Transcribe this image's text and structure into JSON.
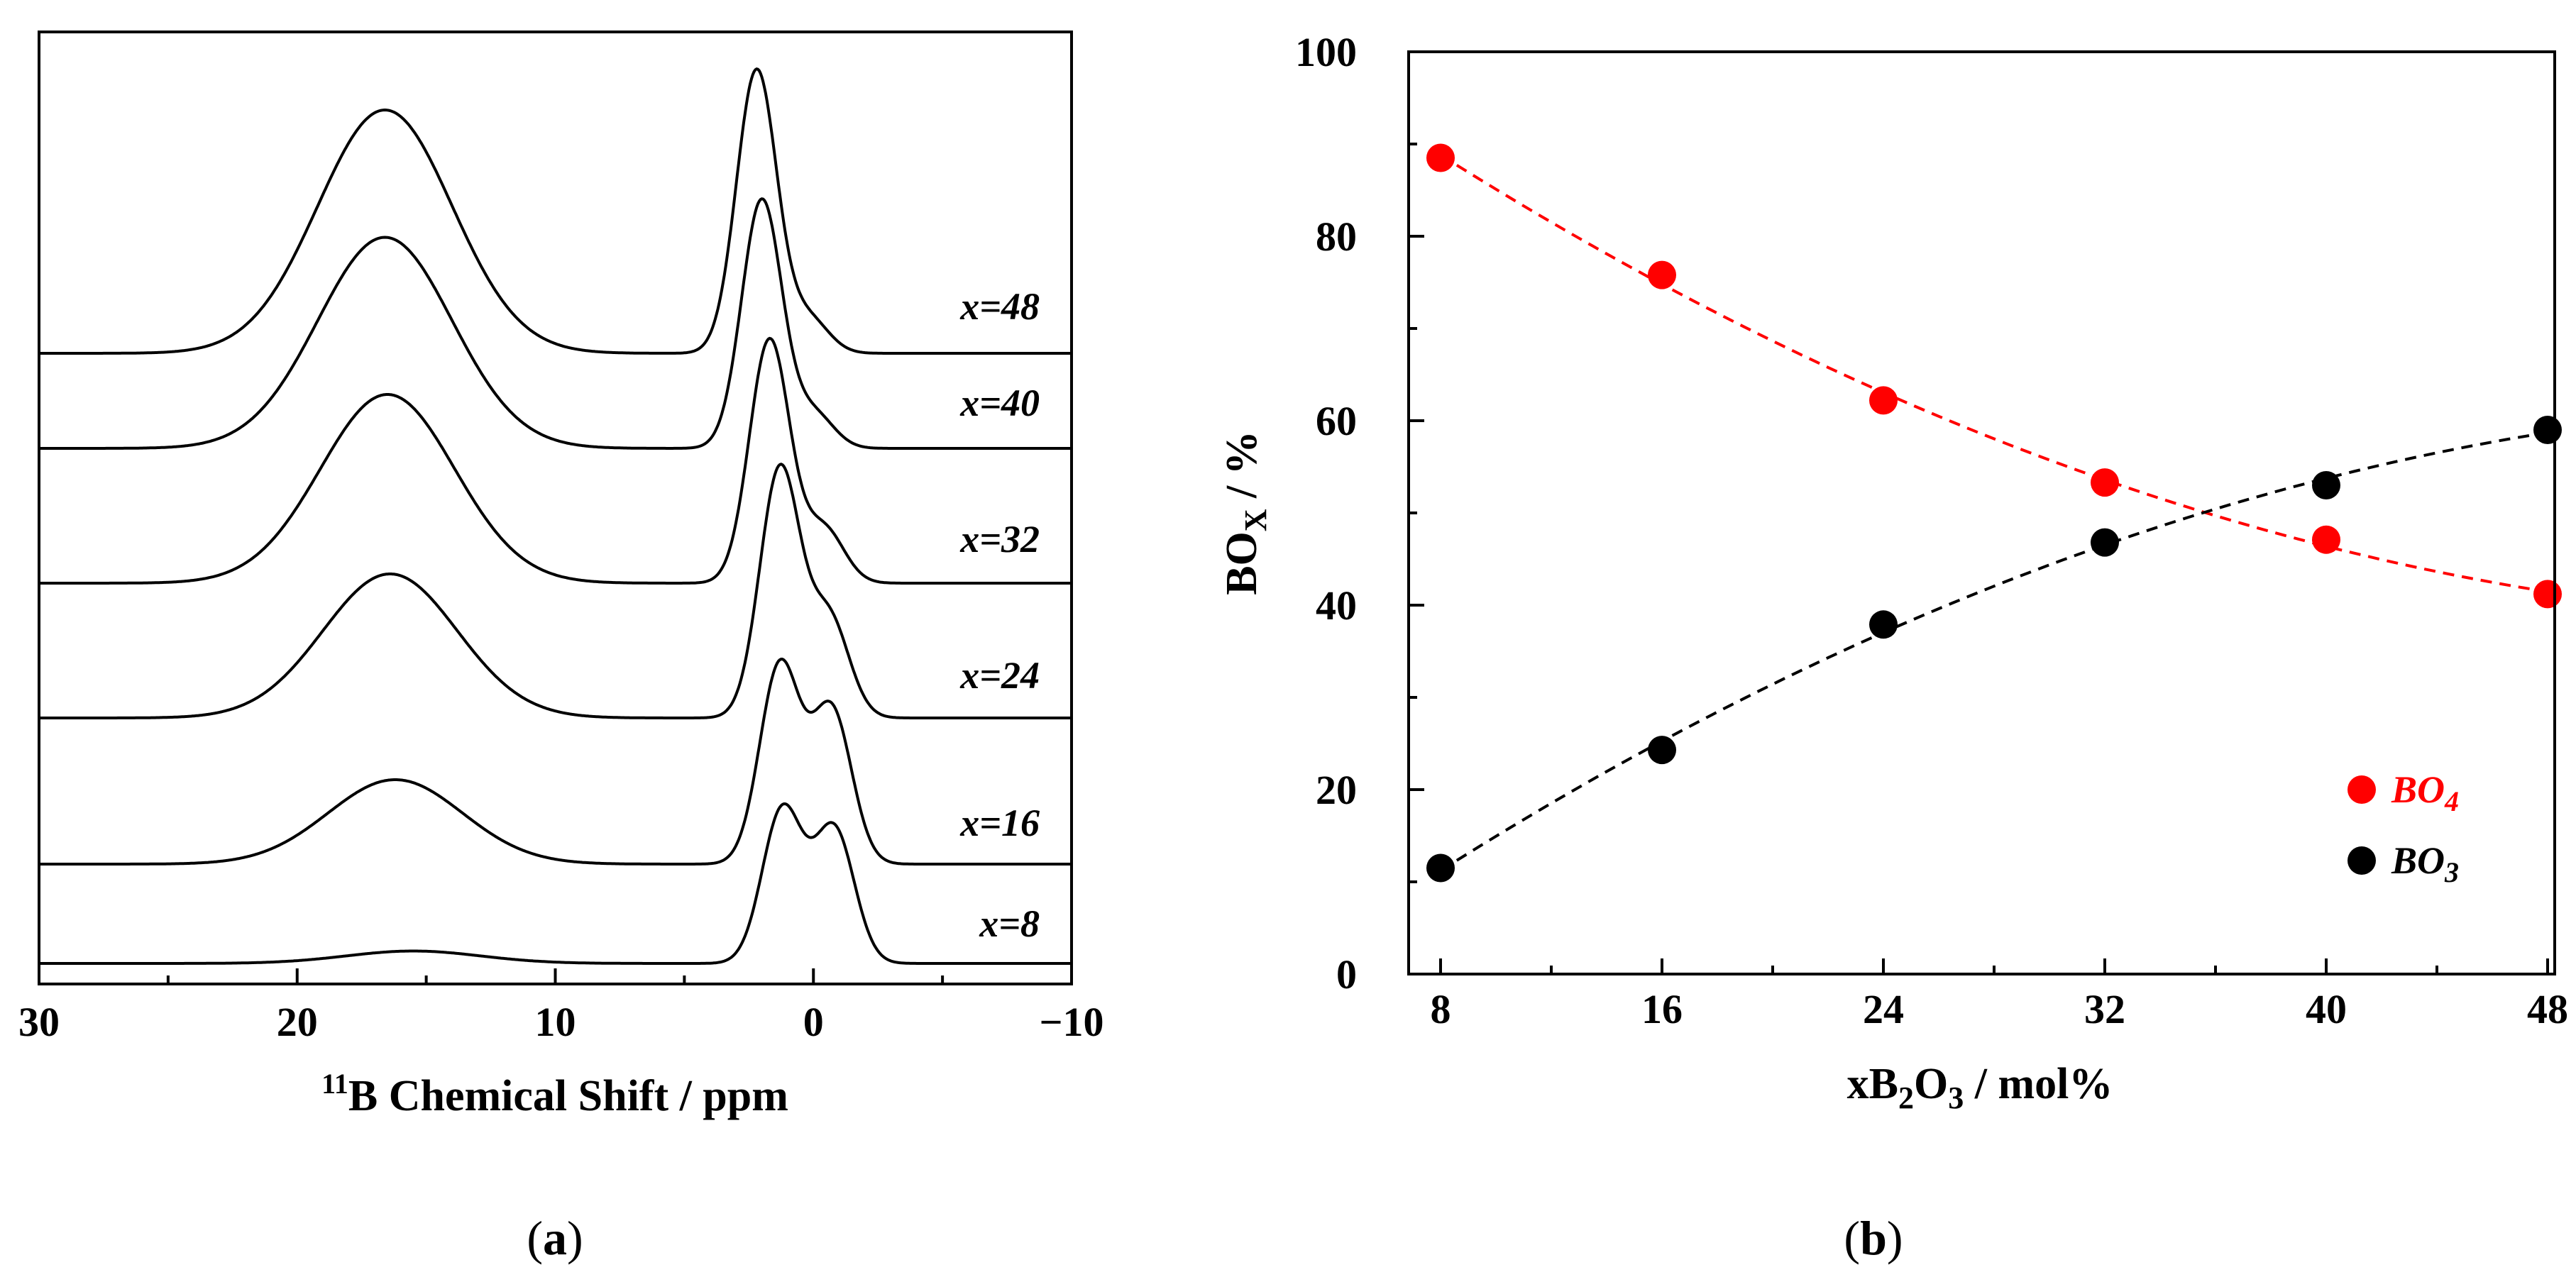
{
  "chart_data": [
    {
      "panel": "(a)",
      "panel_letter": "a",
      "type": "line",
      "title": "",
      "xlabel_sup": "11",
      "xlabel_main": "B Chemical Shift / ppm",
      "ylabel": "",
      "xlim": [
        30,
        -10
      ],
      "xticks": [
        30,
        20,
        10,
        0,
        -10
      ],
      "xtick_labels": [
        "30",
        "20",
        "10",
        "0",
        "−10"
      ],
      "minor_tick_step": 5,
      "series": [
        {
          "name": "x=8",
          "bo4_peak": {
            "center": 15.5,
            "rel_height": 0.05
          },
          "bo3_peaks": [
            {
              "center": 1.2,
              "rel_height": 0.62
            },
            {
              "center": -0.8,
              "rel_height": 0.54
            }
          ]
        },
        {
          "name": "x=16",
          "bo4_peak": {
            "center": 16.2,
            "rel_height": 0.34
          },
          "bo3_peaks": [
            {
              "center": 1.3,
              "rel_height": 0.8
            },
            {
              "center": -0.7,
              "rel_height": 0.62
            }
          ]
        },
        {
          "name": "x=24",
          "bo4_peak": {
            "center": 16.4,
            "rel_height": 0.58
          },
          "bo3_peaks": [
            {
              "center": 1.3,
              "rel_height": 1.0
            },
            {
              "center": -0.6,
              "rel_height": 0.4
            }
          ]
        },
        {
          "name": "x=32",
          "bo4_peak": {
            "center": 16.5,
            "rel_height": 0.76
          },
          "bo3_peaks": [
            {
              "center": 1.7,
              "rel_height": 0.98
            },
            {
              "center": -0.4,
              "rel_height": 0.22
            }
          ]
        },
        {
          "name": "x=40",
          "bo4_peak": {
            "center": 16.6,
            "rel_height": 0.85
          },
          "bo3_peaks": [
            {
              "center": 2.0,
              "rel_height": 1.0
            },
            {
              "center": 0.0,
              "rel_height": 0.14
            }
          ]
        },
        {
          "name": "x=48",
          "bo4_peak": {
            "center": 16.6,
            "rel_height": 0.98
          },
          "bo3_peaks": [
            {
              "center": 2.2,
              "rel_height": 1.14
            },
            {
              "center": 0.2,
              "rel_height": 0.14
            }
          ]
        }
      ]
    },
    {
      "panel": "(b)",
      "panel_letter": "b",
      "type": "scatter",
      "title": "",
      "xlabel_parts": [
        "xB",
        "2",
        "O",
        "3",
        " / mol%"
      ],
      "ylabel_main": "BO",
      "ylabel_sub": "X",
      "ylabel_suffix": " / %",
      "xlim": [
        8,
        48
      ],
      "ylim": [
        0,
        100
      ],
      "xticks": [
        8,
        16,
        24,
        32,
        40,
        48
      ],
      "xtick_labels": [
        "8",
        "16",
        "24",
        "32",
        "40",
        "48"
      ],
      "yticks": [
        0,
        20,
        40,
        60,
        80,
        100
      ],
      "ytick_labels": [
        "0",
        "20",
        "40",
        "60",
        "80",
        "100"
      ],
      "minor_xtick_step": 4,
      "minor_ytick_step": 10,
      "series": [
        {
          "name": "BO4",
          "label_main": "BO",
          "label_sub": "4",
          "color": "#ff0000",
          "x": [
            8,
            16,
            24,
            32,
            40,
            48
          ],
          "y": [
            88.5,
            75.8,
            62.2,
            53.3,
            47.1,
            41.2
          ],
          "fit": "dashed"
        },
        {
          "name": "BO3",
          "label_main": "BO",
          "label_sub": "3",
          "color": "#000000",
          "x": [
            8,
            16,
            24,
            32,
            40,
            48
          ],
          "y": [
            11.5,
            24.3,
            37.9,
            46.8,
            53.0,
            59.0
          ],
          "fit": "dashed"
        }
      ],
      "legend_position": "lower-right"
    }
  ]
}
